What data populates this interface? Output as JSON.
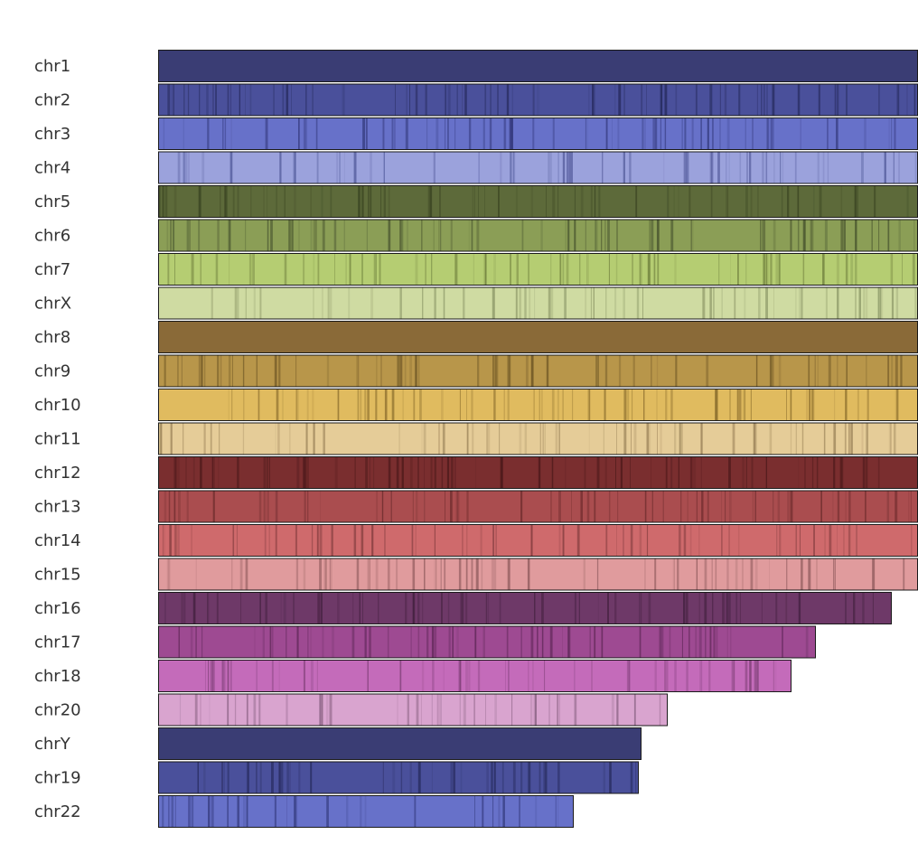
{
  "chromosomes": [
    {
      "name": "chr1",
      "color": "#3a3d74",
      "stripe": "#23264a",
      "length": 1.0,
      "band_density": 0.0
    },
    {
      "name": "chr2",
      "color": "#4a509b",
      "stripe": "#262a5c",
      "length": 1.0,
      "band_density": 0.55
    },
    {
      "name": "chr3",
      "color": "#6771c9",
      "stripe": "#363c80",
      "length": 1.0,
      "band_density": 0.5
    },
    {
      "name": "chr4",
      "color": "#9ba2dc",
      "stripe": "#545c9c",
      "length": 1.0,
      "band_density": 0.45
    },
    {
      "name": "chr5",
      "color": "#5d6a3a",
      "stripe": "#3a4422",
      "length": 1.0,
      "band_density": 0.5
    },
    {
      "name": "chr6",
      "color": "#8b9e56",
      "stripe": "#4a5630",
      "length": 1.0,
      "band_density": 0.55
    },
    {
      "name": "chr7",
      "color": "#b5cd72",
      "stripe": "#6d7d3c",
      "length": 1.0,
      "band_density": 0.5
    },
    {
      "name": "chrX",
      "color": "#cfdba2",
      "stripe": "#8d9868",
      "length": 1.0,
      "band_density": 0.45
    },
    {
      "name": "chr8",
      "color": "#8a6a38",
      "stripe": "#5a431f",
      "length": 1.0,
      "band_density": 0.0
    },
    {
      "name": "chr9",
      "color": "#b8964a",
      "stripe": "#6e5625",
      "length": 1.0,
      "band_density": 0.45
    },
    {
      "name": "chr10",
      "color": "#e0bb5f",
      "stripe": "#8c6f2e",
      "length": 1.0,
      "band_density": 0.5
    },
    {
      "name": "chr11",
      "color": "#e5cc98",
      "stripe": "#9a8258",
      "length": 1.0,
      "band_density": 0.5
    },
    {
      "name": "chr12",
      "color": "#7a2e2f",
      "stripe": "#4a1819",
      "length": 1.0,
      "band_density": 0.5
    },
    {
      "name": "chr13",
      "color": "#aa4d4f",
      "stripe": "#6a2a2b",
      "length": 1.0,
      "band_density": 0.45
    },
    {
      "name": "chr14",
      "color": "#cf6a6c",
      "stripe": "#7e3a3c",
      "length": 1.0,
      "band_density": 0.45
    },
    {
      "name": "chr15",
      "color": "#e09b9d",
      "stripe": "#8e5a5c",
      "length": 1.0,
      "band_density": 0.45
    },
    {
      "name": "chr16",
      "color": "#6e3968",
      "stripe": "#42203e",
      "length": 0.966,
      "band_density": 0.5
    },
    {
      "name": "chr17",
      "color": "#9e4a92",
      "stripe": "#5e2757",
      "length": 0.866,
      "band_density": 0.5
    },
    {
      "name": "chr18",
      "color": "#c46bba",
      "stripe": "#7a3d73",
      "length": 0.833,
      "band_density": 0.45
    },
    {
      "name": "chr20",
      "color": "#d9a4cf",
      "stripe": "#8a6283",
      "length": 0.671,
      "band_density": 0.45
    },
    {
      "name": "chrY",
      "color": "#3a3d74",
      "stripe": "#23264a",
      "length": 0.636,
      "band_density": 0.0
    },
    {
      "name": "chr19",
      "color": "#4a509b",
      "stripe": "#262a5c",
      "length": 0.633,
      "band_density": 0.55
    },
    {
      "name": "chr22",
      "color": "#6771c9",
      "stripe": "#363c80",
      "length": 0.547,
      "band_density": 0.45
    }
  ]
}
